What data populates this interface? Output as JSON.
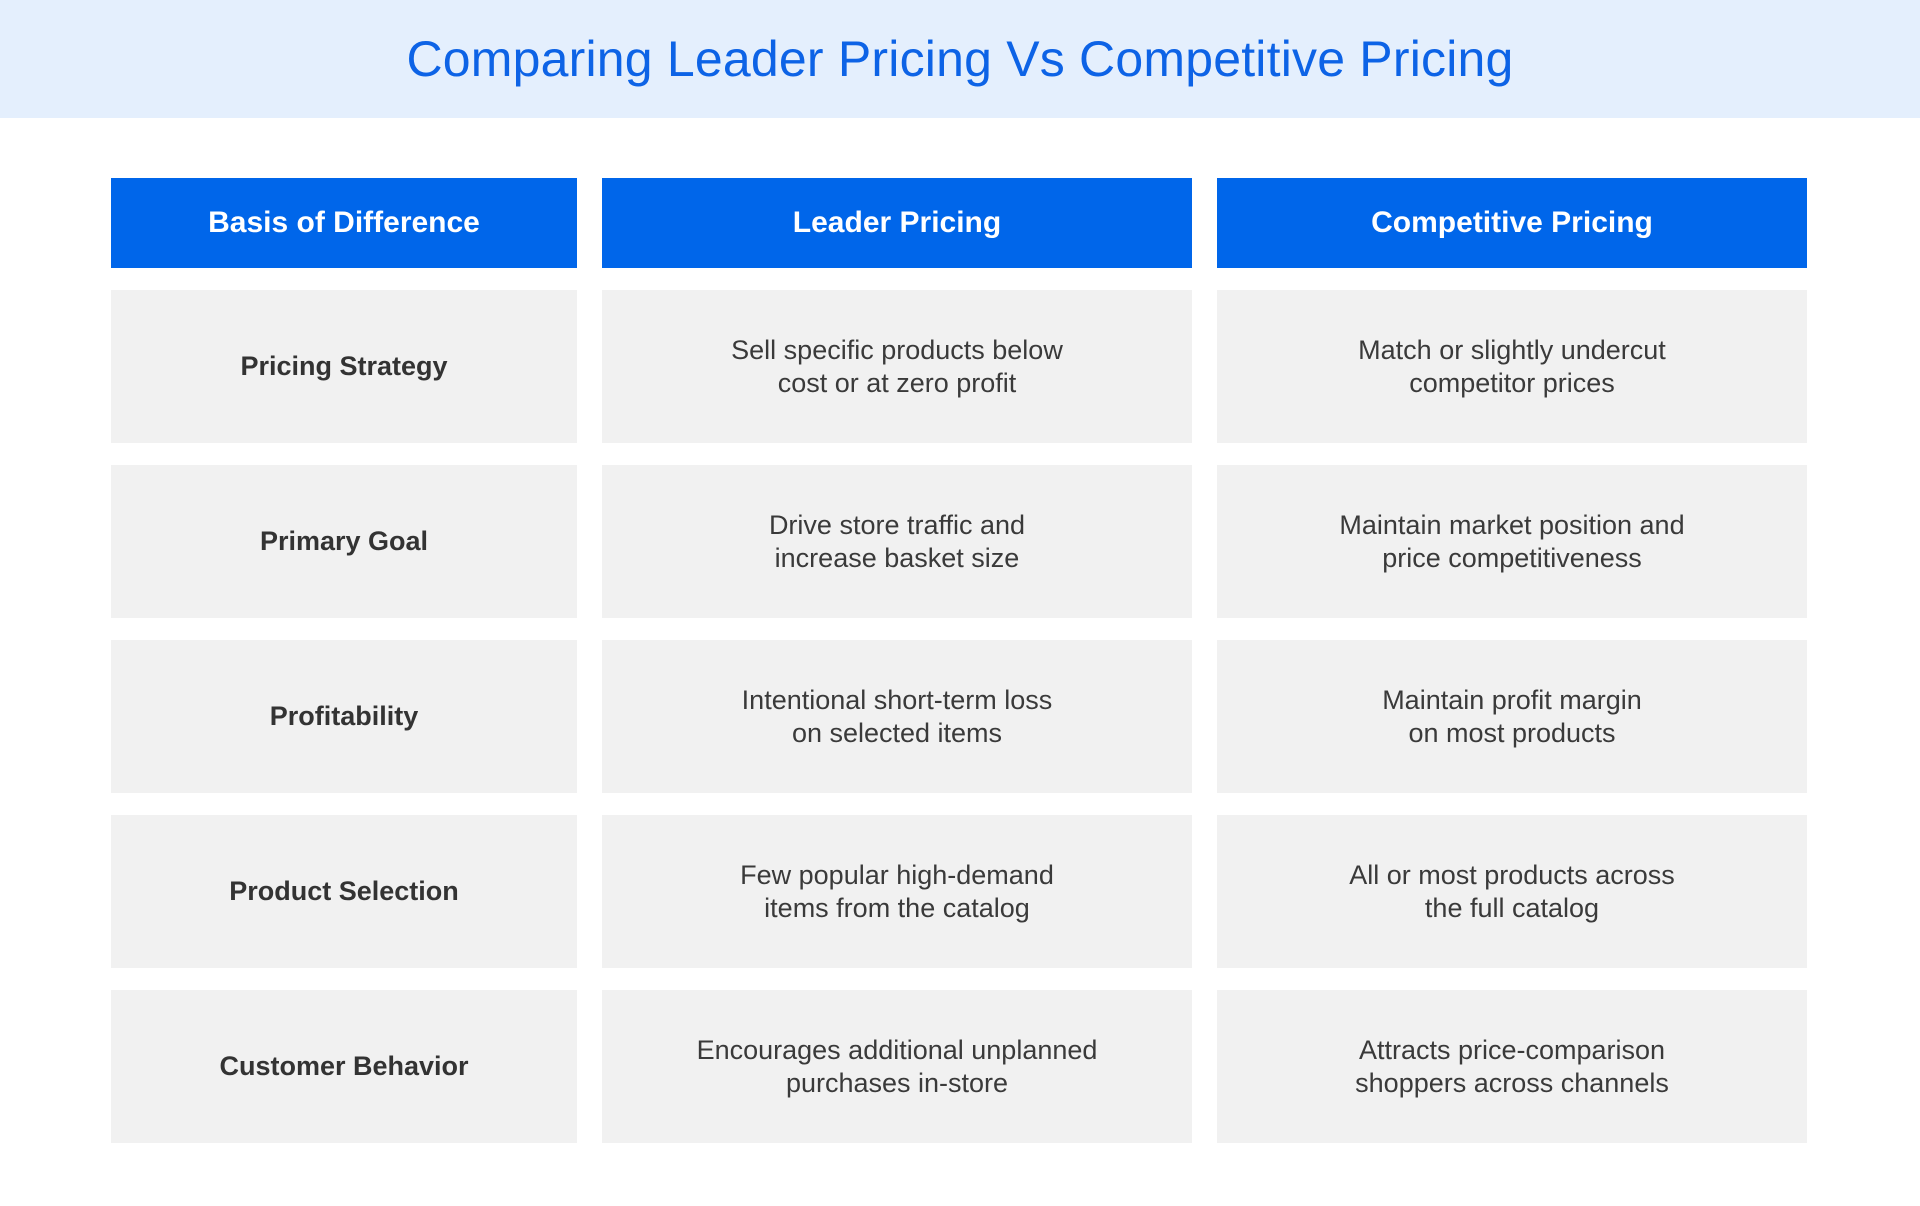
{
  "title": "Comparing Leader Pricing Vs Competitive Pricing",
  "headers": [
    "Basis of Difference",
    "Leader Pricing",
    "Competitive Pricing"
  ],
  "rows": [
    {
      "basis": "Pricing Strategy",
      "leader": "Sell specific products below\ncost or at zero profit",
      "competitive": "Match or slightly undercut\ncompetitor prices"
    },
    {
      "basis": "Primary Goal",
      "leader": "Drive store traffic and\nincrease basket size",
      "competitive": "Maintain market position and\nprice competitiveness"
    },
    {
      "basis": "Profitability",
      "leader": "Intentional short-term loss\non selected items",
      "competitive": "Maintain profit margin\non most products"
    },
    {
      "basis": "Product Selection",
      "leader": "Few popular high-demand\nitems from the catalog",
      "competitive": "All or most products across\nthe full catalog"
    },
    {
      "basis": "Customer Behavior",
      "leader": "Encourages additional unplanned\npurchases in-store",
      "competitive": "Attracts price-comparison\nshoppers across channels"
    }
  ],
  "colors": {
    "title_text": "#0d63e6",
    "title_bar": "#e4effd",
    "header_bg": "#0066ea",
    "cell_bg": "#f1f1f1"
  }
}
